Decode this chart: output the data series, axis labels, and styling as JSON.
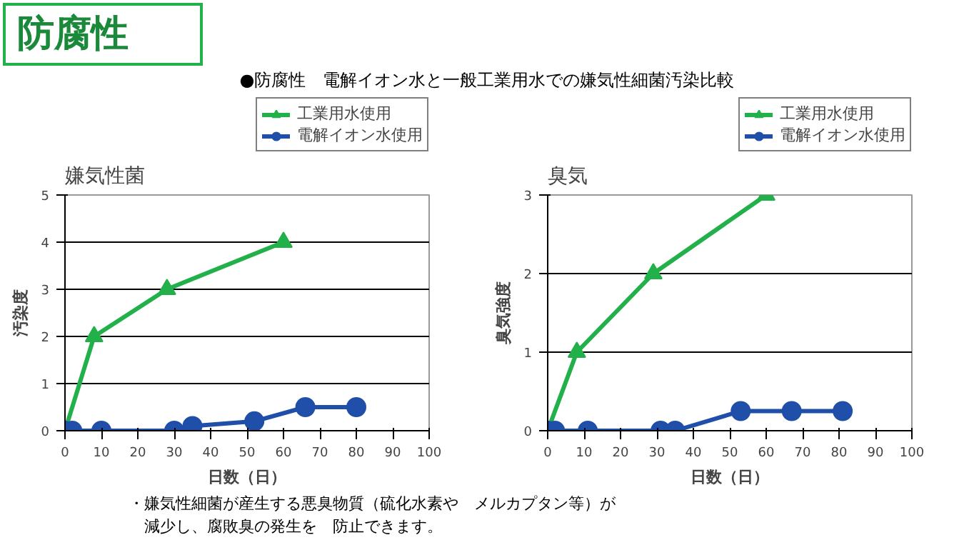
{
  "chart_data": [
    {
      "type": "line",
      "title": "嫌気性菌",
      "xlabel": "日数（日）",
      "ylabel": "汚染度",
      "annotations": [
        "防腐性",
        "●防腐性　電解イオン水と一般工業用水での嫌気性細菌汚染比較",
        "・嫌気性細菌が産生する悪臭物質（硫化水素や　メルカプタン等）が",
        "　減少し、腐敗臭の発生を　防止できます。"
      ],
      "series": [
        {
          "name": "工業用水使用",
          "color": "#22b04b",
          "marker": "triangle",
          "x": [
            0,
            8,
            28,
            60
          ],
          "values": [
            0,
            2,
            3,
            4
          ]
        },
        {
          "name": "電解イオン水使用",
          "color": "#1f4fa8",
          "marker": "circle",
          "x": [
            0,
            2,
            10,
            30,
            35,
            52,
            66,
            80
          ],
          "values": [
            0,
            0,
            0,
            0,
            0.1,
            0.2,
            0.5,
            0.5
          ]
        }
      ],
      "xlim": [
        0,
        100
      ],
      "xticks": [
        0,
        10,
        20,
        30,
        40,
        50,
        60,
        70,
        80,
        90,
        100
      ],
      "ylim": [
        0,
        5
      ],
      "yticks": [
        0,
        1,
        2,
        3,
        4,
        5
      ],
      "grid": "y",
      "legend": "top right"
    },
    {
      "type": "line",
      "title": "臭気",
      "xlabel": "日数（日）",
      "ylabel": "臭気強度",
      "series": [
        {
          "name": "工業用水使用",
          "color": "#22b04b",
          "marker": "triangle",
          "x": [
            0,
            8,
            29,
            60
          ],
          "values": [
            0,
            1,
            2,
            3
          ]
        },
        {
          "name": "電解イオン水使用",
          "color": "#1f4fa8",
          "marker": "circle",
          "x": [
            0,
            2,
            11,
            31,
            35,
            53,
            67,
            81
          ],
          "values": [
            0,
            0,
            0,
            0,
            0,
            0.25,
            0.25,
            0.25
          ]
        }
      ],
      "xlim": [
        0,
        100
      ],
      "xticks": [
        0,
        10,
        20,
        30,
        40,
        50,
        60,
        70,
        80,
        90,
        100
      ],
      "ylim": [
        0,
        3
      ],
      "yticks": [
        0,
        1,
        2,
        3
      ],
      "grid": "y",
      "legend": "top right"
    }
  ]
}
